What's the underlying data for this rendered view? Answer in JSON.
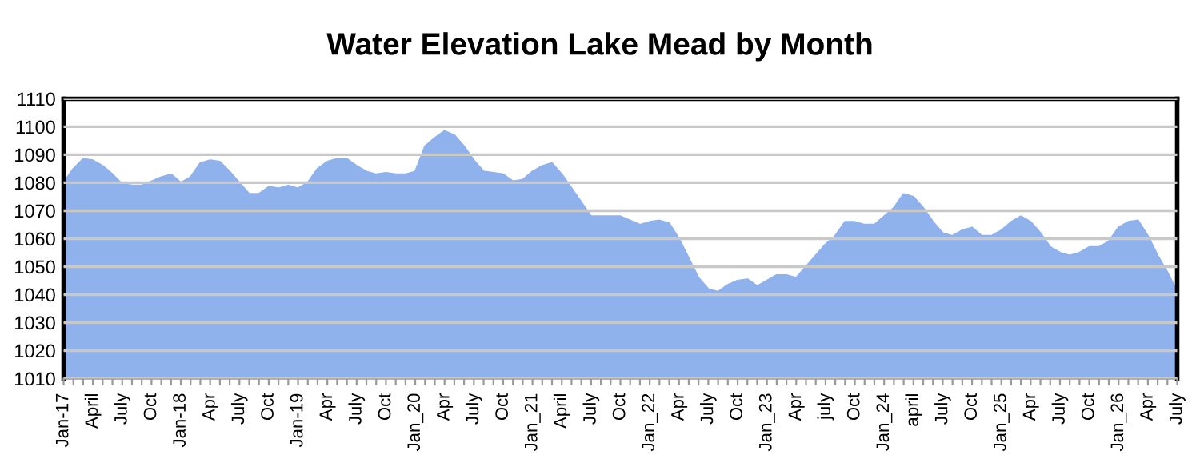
{
  "chart_data": {
    "type": "area",
    "title": "Water Elevation Lake Mead by Month",
    "categories": [
      "Jan-17",
      null,
      null,
      "April",
      null,
      null,
      "July",
      null,
      null,
      "Oct",
      null,
      null,
      "Jan-18",
      null,
      null,
      "Apr",
      null,
      null,
      "July",
      null,
      null,
      "Oct",
      null,
      null,
      "Jan-19",
      null,
      null,
      "Apr",
      null,
      null,
      "July",
      null,
      null,
      "Oct",
      null,
      null,
      "Jan_20",
      null,
      null,
      "Apr",
      null,
      null,
      "July",
      null,
      null,
      "Oct",
      null,
      null,
      "Jan_21",
      null,
      null,
      "April",
      null,
      null,
      "July",
      null,
      null,
      "Oct",
      null,
      null,
      "Jan_22",
      null,
      null,
      "Apr",
      null,
      null,
      "July",
      null,
      null,
      "Oct",
      null,
      null,
      "Jan_23",
      null,
      null,
      "Apr",
      null,
      null,
      "july",
      null,
      null,
      "Oct",
      null,
      null,
      "Jan_24",
      null,
      null,
      "april",
      null,
      null,
      "July",
      null,
      null,
      "Oct",
      null,
      null,
      "Jan_25",
      null,
      null,
      "Apr",
      null,
      null,
      "July",
      null,
      null,
      "Oct",
      null,
      null,
      "Jan_26",
      null,
      null,
      "Apr",
      null,
      null,
      "July"
    ],
    "series": [
      {
        "color": "#8fb1ec",
        "values": [
          1080,
          1085,
          1088.5,
          1088,
          1086,
          1083,
          1079.5,
          1079,
          1079,
          1080.5,
          1082,
          1083,
          1080,
          1082,
          1087,
          1088,
          1087.5,
          1084,
          1080,
          1076,
          1076,
          1078.5,
          1078,
          1079,
          1078,
          1080,
          1085,
          1087.5,
          1088.5,
          1088.5,
          1086,
          1084,
          1083,
          1083.5,
          1083,
          1083,
          1084,
          1093,
          1096,
          1098.5,
          1097,
          1093,
          1088,
          1084,
          1083.5,
          1083,
          1080.5,
          1081,
          1084,
          1086,
          1087,
          1083,
          1078,
          1073,
          1068,
          1068,
          1068,
          1068,
          1066.5,
          1065,
          1066,
          1066.5,
          1065.5,
          1060,
          1053,
          1046,
          1042,
          1041,
          1043.5,
          1045,
          1045.5,
          1043,
          1045,
          1047,
          1047,
          1046,
          1050,
          1054,
          1058,
          1061,
          1066,
          1066,
          1065,
          1065,
          1068,
          1071,
          1076,
          1075,
          1071,
          1066,
          1062,
          1061,
          1063,
          1064,
          1061,
          1061,
          1063,
          1066,
          1068,
          1066,
          1062,
          1057,
          1055,
          1054,
          1055,
          1057,
          1057,
          1059,
          1064,
          1066,
          1066.5,
          1061,
          1054,
          1048,
          1041
        ]
      }
    ],
    "ylim": [
      1010,
      1110
    ],
    "yticks": [
      1010,
      1020,
      1030,
      1040,
      1050,
      1060,
      1070,
      1080,
      1090,
      1100,
      1110
    ],
    "grid": "y",
    "legend": false
  }
}
